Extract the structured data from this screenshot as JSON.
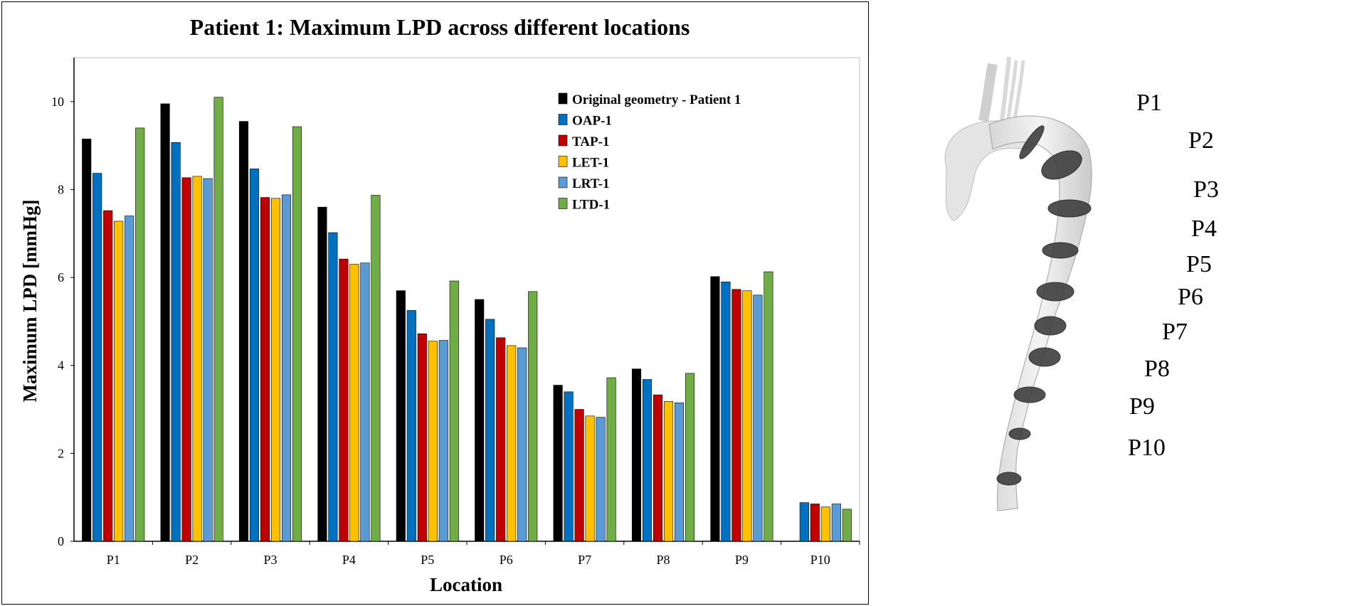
{
  "chart_data": {
    "type": "bar",
    "title": "Patient 1: Maximum LPD across different locations",
    "xlabel": "Location",
    "ylabel": "Maximum LPD [mmHg]",
    "ylim": [
      0,
      11
    ],
    "yticks": [
      0,
      2,
      4,
      6,
      8,
      10
    ],
    "grid": false,
    "legend_position": "top-right",
    "categories": [
      "P1",
      "P2",
      "P3",
      "P4",
      "P5",
      "P6",
      "P7",
      "P8",
      "P9",
      "P10"
    ],
    "series": [
      {
        "name": "Original geometry - Patient 1",
        "color": "#000000",
        "values": [
          9.15,
          9.95,
          9.55,
          7.6,
          5.7,
          5.5,
          3.55,
          3.92,
          6.02,
          null
        ]
      },
      {
        "name": "OAP-1",
        "color": "#0070c0",
        "values": [
          8.37,
          9.07,
          8.47,
          7.02,
          5.25,
          5.05,
          3.4,
          3.68,
          5.9,
          0.88
        ]
      },
      {
        "name": "TAP-1",
        "color": "#c00000",
        "values": [
          7.52,
          8.27,
          7.82,
          6.42,
          4.72,
          4.63,
          3.0,
          3.33,
          5.73,
          0.85
        ]
      },
      {
        "name": "LET-1",
        "color": "#ffc000",
        "values": [
          7.28,
          8.3,
          7.8,
          6.3,
          4.55,
          4.45,
          2.85,
          3.18,
          5.7,
          0.78
        ]
      },
      {
        "name": "LRT-1",
        "color": "#5b9bd5",
        "values": [
          7.4,
          8.25,
          7.88,
          6.33,
          4.57,
          4.4,
          2.82,
          3.15,
          5.6,
          0.85
        ]
      },
      {
        "name": "LTD-1",
        "color": "#70ad47",
        "values": [
          9.4,
          10.1,
          9.43,
          7.87,
          5.92,
          5.68,
          3.72,
          3.82,
          6.13,
          0.73
        ]
      }
    ]
  },
  "figure_labels": {
    "aorta_locations": [
      "P1",
      "P2",
      "P3",
      "P4",
      "P5",
      "P6",
      "P7",
      "P8",
      "P9",
      "P10"
    ]
  }
}
